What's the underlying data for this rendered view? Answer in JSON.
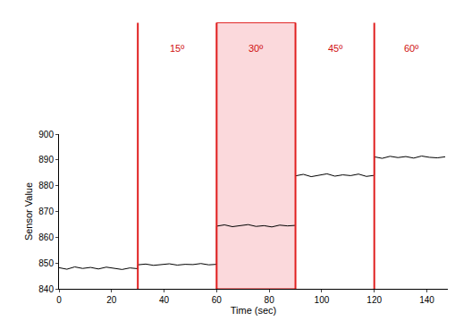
{
  "chart_data": {
    "type": "line",
    "x_label": "Time (sec)",
    "y_label": "Sensor Value",
    "x": [
      0,
      3,
      6,
      9,
      12,
      15,
      18,
      21,
      24,
      27,
      30,
      30,
      33,
      36,
      39,
      42,
      45,
      48,
      51,
      54,
      57,
      60,
      60,
      63,
      66,
      69,
      72,
      75,
      78,
      81,
      84,
      87,
      90,
      90,
      93,
      96,
      99,
      102,
      105,
      108,
      111,
      114,
      117,
      120,
      120,
      123,
      126,
      129,
      132,
      135,
      138,
      141,
      144,
      147
    ],
    "values": [
      848.2,
      847.6,
      848.5,
      847.9,
      848.3,
      847.7,
      848.4,
      848.0,
      847.5,
      848.1,
      847.8,
      849.3,
      849.6,
      849.1,
      849.5,
      849.7,
      849.2,
      849.5,
      849.4,
      849.8,
      849.3,
      849.5,
      864.3,
      864.8,
      864.1,
      864.6,
      864.9,
      864.2,
      864.5,
      864.0,
      864.7,
      864.4,
      864.6,
      883.8,
      884.4,
      883.5,
      884.1,
      884.6,
      883.7,
      884.2,
      883.9,
      884.5,
      883.6,
      884.0,
      891.2,
      890.6,
      891.4,
      890.9,
      891.3,
      890.7,
      891.5,
      891.0,
      890.8,
      891.2
    ],
    "color": "#000000",
    "xlim": [
      0,
      148
    ],
    "xticks": [
      0,
      20,
      40,
      60,
      80,
      100,
      120,
      140
    ],
    "ylim": [
      840,
      900
    ],
    "yticks": [
      840,
      850,
      860,
      870,
      880,
      890,
      900
    ],
    "grid": false,
    "boundaries": [
      30,
      60,
      90,
      120
    ],
    "highlight": [
      60,
      90
    ],
    "segment_labels": [
      "15º",
      "30º",
      "45º",
      "60º"
    ]
  }
}
